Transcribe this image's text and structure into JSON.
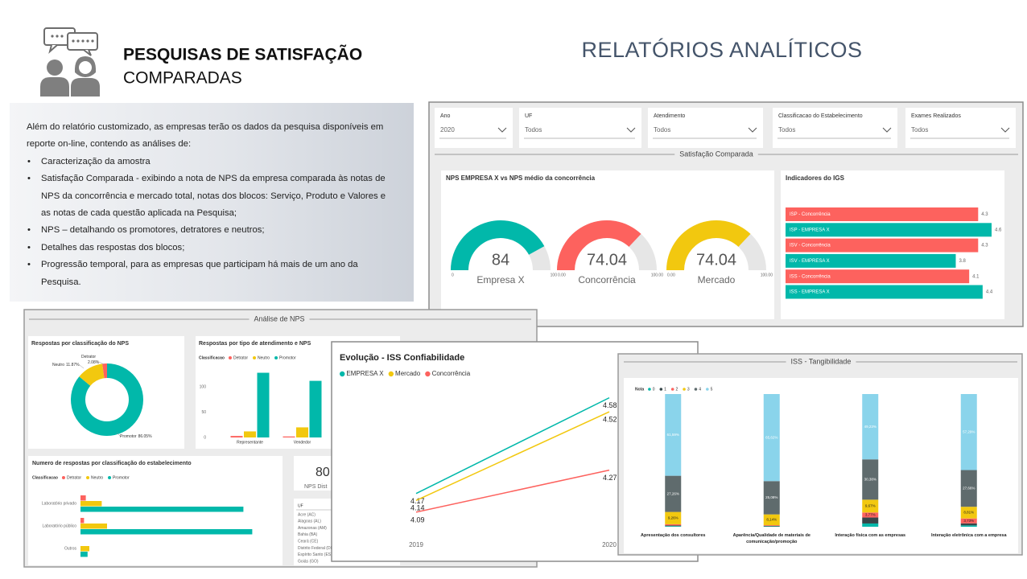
{
  "header": {
    "title": "PESQUISAS DE SATISFAÇÃO",
    "subtitle": "COMPARADAS",
    "report_title": "RELATÓRIOS ANALÍTICOS"
  },
  "intro": {
    "text": "Além do relatório customizado, as empresas terão os dados da pesquisa disponíveis em reporte on-line, contendo as análises de:",
    "bullets": [
      "Caracterização da amostra",
      "Satisfação Comparada - exibindo a nota de NPS da empresa comparada às notas de NPS da concorrência e mercado total, notas dos blocos: Serviço, Produto e Valores e as notas de cada questão aplicada na Pesquisa;",
      "NPS – detalhando os promotores, detratores e neutros;",
      "Detalhes das respostas dos blocos;",
      "Progressão temporal, para as empresas que participam há mais de um ano da Pesquisa."
    ]
  },
  "dashboard_satisfacao": {
    "filters": [
      {
        "label": "Ano",
        "value": "2020"
      },
      {
        "label": "UF",
        "value": "Todos"
      },
      {
        "label": "Atendimento",
        "value": "Todos"
      },
      {
        "label": "Classificacao do Estabelecimento",
        "value": "Todos"
      },
      {
        "label": "Exames Realizados",
        "value": "Todos"
      }
    ],
    "section_title": "Satisfação Comparada",
    "gauges": {
      "type": "gauge",
      "title": "NPS EMPRESA X vs NPS médio da concorrência",
      "items": [
        {
          "label": "Empresa X",
          "value": 84,
          "min": 0,
          "max": 100,
          "color": "#01b8aa"
        },
        {
          "label": "Concorrência",
          "value": 74.04,
          "min": {
            "value": 0,
            "label": "0.00"
          },
          "max": {
            "value": 100,
            "label": "100.00"
          },
          "color": "#fd625e"
        },
        {
          "label": "Mercado",
          "value": 74.04,
          "min": {
            "value": 0,
            "label": "0.00"
          },
          "max": {
            "value": 100,
            "label": "100.00"
          },
          "color": "#f2c80f"
        }
      ]
    },
    "igs": {
      "type": "bar",
      "orientation": "horizontal",
      "title": "Indicadores do IGS",
      "categories": [
        "ISP - Concorrência",
        "ISP - EMPRESA X",
        "ISV - Concorrência",
        "ISV - EMPRESA X",
        "ISS - Concorrência",
        "ISS - EMPRESA X"
      ],
      "values": [
        4.3,
        4.6,
        4.3,
        3.8,
        4.1,
        4.4
      ],
      "colors": [
        "#fd625e",
        "#01b8aa",
        "#fd625e",
        "#01b8aa",
        "#fd625e",
        "#01b8aa"
      ]
    }
  },
  "dashboard_nps": {
    "section_title": "Análise de NPS",
    "donut": {
      "type": "donut",
      "title": "Respostas por classificação do NPS",
      "categories": [
        "Promotor",
        "Neutro",
        "Detrator"
      ],
      "values": [
        86.05,
        11.87,
        2.08
      ],
      "value_labels": [
        "86.05%",
        "11.87%",
        "2.08%"
      ],
      "colors": [
        "#01b8aa",
        "#f2c80f",
        "#fd625e"
      ]
    },
    "atendimento": {
      "type": "bar",
      "title": "Respostas por tipo de atendimento e NPS",
      "legend_title": "Classificacao",
      "categories": [
        "Representante",
        "Vendedor"
      ],
      "series": [
        {
          "name": "Detrator",
          "color": "#fd625e",
          "values": [
            3,
            2
          ]
        },
        {
          "name": "Neutro",
          "color": "#f2c80f",
          "values": [
            12,
            20
          ]
        },
        {
          "name": "Promotor",
          "color": "#01b8aa",
          "values": [
            128,
            112
          ]
        }
      ],
      "ylim": [
        0,
        140
      ],
      "yticks": [
        0,
        50,
        100
      ]
    },
    "estabelecimento": {
      "type": "bar",
      "orientation": "horizontal",
      "title": "Numero de respostas por classificação do estabelecimento",
      "legend_title": "Classificacao",
      "categories": [
        "Laboratório privado",
        "Laboratório público",
        "Outros"
      ],
      "series": [
        {
          "name": "Detrator",
          "color": "#fd625e",
          "values": [
            3,
            2,
            0
          ]
        },
        {
          "name": "Neutro",
          "color": "#f2c80f",
          "values": [
            12,
            15,
            5
          ]
        },
        {
          "name": "Promotor",
          "color": "#01b8aa",
          "values": [
            92,
            97,
            4
          ]
        }
      ]
    },
    "kpi": {
      "value": 80,
      "label": "NPS Dist"
    },
    "uf_table": {
      "header": "UF",
      "rows": [
        "Acre (AC)",
        "Alagoas (AL)",
        "Amazonas (AM)",
        "Bahia (BA)",
        "Ceará (CE)",
        "Distrito Federal (DF)",
        "Espírito Santo (ES)",
        "Goiás (GO)"
      ]
    }
  },
  "chart_evolucao": {
    "type": "line",
    "title": "Evolução - ISS Confiabilidade",
    "x": [
      "2019",
      "2020"
    ],
    "series": [
      {
        "name": "EMPRESA X",
        "color": "#01b8aa",
        "values": [
          4.17,
          4.58
        ]
      },
      {
        "name": "Mercado",
        "color": "#f2c80f",
        "values": [
          4.14,
          4.52
        ]
      },
      {
        "name": "Concorrência",
        "color": "#fd625e",
        "values": [
          4.09,
          4.27
        ]
      }
    ],
    "ylim": [
      4.0,
      4.72
    ]
  },
  "chart_tangibilidade": {
    "type": "stacked-bar",
    "section_title": "ISS - Tangibilidade",
    "legend_title": "Nota",
    "categories": [
      "Apresentação dos consultores",
      "Aparência/Qualidade de materiais de comunicação/promoção",
      "Interação física com as empresas",
      "Interação eletrônica com a empresa"
    ],
    "series": [
      {
        "name": "0",
        "color": "#01b8aa",
        "values": [
          0.49,
          0.26,
          2.45,
          1.01
        ]
      },
      {
        "name": "1",
        "color": "#374649",
        "values": [
          0.5,
          0.4,
          4.5,
          1.5
        ]
      },
      {
        "name": "2",
        "color": "#fd625e",
        "values": [
          0.9,
          0.5,
          3.77,
          3.73
        ],
        "value_labels": [
          null,
          null,
          "3,77%",
          "3,73%"
        ]
      },
      {
        "name": "3",
        "color": "#f2c80f",
        "values": [
          9.26,
          8.14,
          9.67,
          8.81
        ],
        "value_labels": [
          "9,26%",
          "8,14%",
          "9,67%",
          "8,81%"
        ]
      },
      {
        "name": "4",
        "color": "#5f6b6d",
        "values": [
          27.26,
          25.08,
          30.38,
          27.66
        ],
        "value_labels": [
          "27,26%",
          "25,08%",
          "30,38%",
          "27,66%"
        ]
      },
      {
        "name": "5",
        "color": "#8ad4eb",
        "values": [
          61.59,
          65.62,
          49.23,
          57.29
        ],
        "value_labels": [
          "61,59%",
          "65,62%",
          "49,23%",
          "57,29%"
        ]
      }
    ],
    "ylim": [
      0,
      100
    ]
  }
}
